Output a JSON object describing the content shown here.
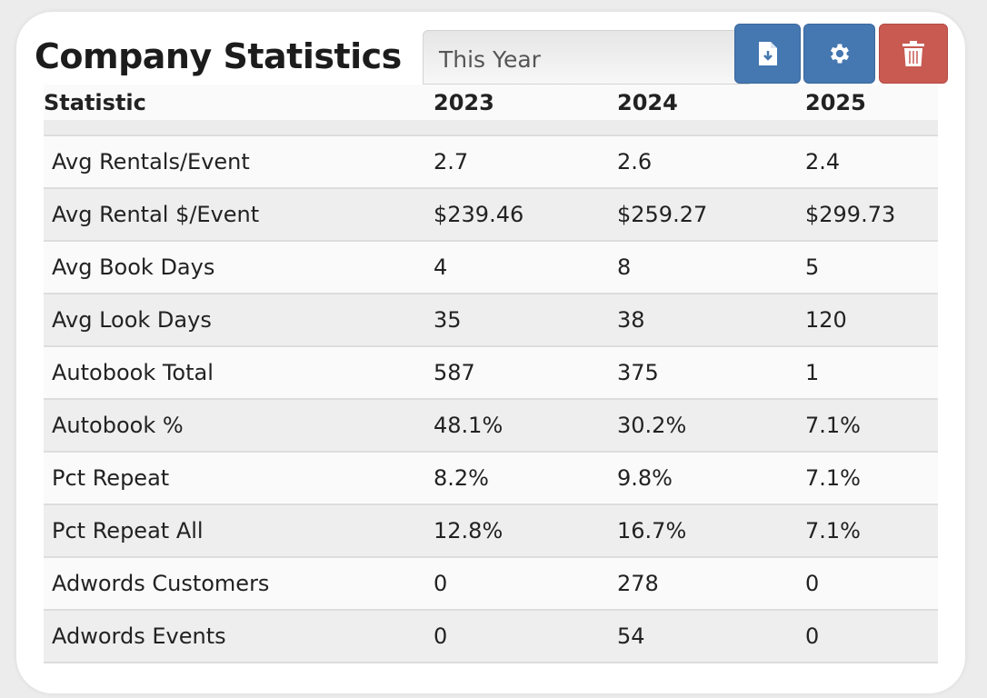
{
  "header": {
    "title": "Company Statistics",
    "range_value": "This Year"
  },
  "buttons": {
    "download": "download-file-icon",
    "settings": "gear-icon",
    "delete": "trash-icon"
  },
  "colors": {
    "primary": "#4577b0",
    "danger": "#c85a52"
  },
  "table": {
    "columns": [
      "Statistic",
      "2023",
      "2024",
      "2025"
    ],
    "rows": [
      [
        "Avg Rentals/Event",
        "2.7",
        "2.6",
        "2.4"
      ],
      [
        "Avg Rental $/Event",
        "$239.46",
        "$259.27",
        "$299.73"
      ],
      [
        "Avg Book Days",
        "4",
        "8",
        "5"
      ],
      [
        "Avg Look Days",
        "35",
        "38",
        "120"
      ],
      [
        "Autobook Total",
        "587",
        "375",
        "1"
      ],
      [
        "Autobook %",
        "48.1%",
        "30.2%",
        "7.1%"
      ],
      [
        "Pct Repeat",
        "8.2%",
        "9.8%",
        "7.1%"
      ],
      [
        "Pct Repeat All",
        "12.8%",
        "16.7%",
        "7.1%"
      ],
      [
        "Adwords Customers",
        "0",
        "278",
        "0"
      ],
      [
        "Adwords Events",
        "0",
        "54",
        "0"
      ]
    ]
  }
}
